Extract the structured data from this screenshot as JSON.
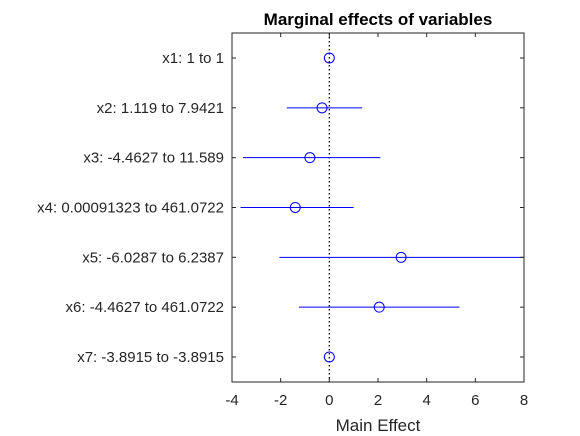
{
  "chart_data": {
    "type": "scatter",
    "title": "Marginal effects of variables",
    "xlabel": "Main Effect",
    "ylabel": "",
    "xlim": [
      -4,
      8
    ],
    "xticks": [
      "-4",
      "-2",
      "0",
      "2",
      "4",
      "6",
      "8"
    ],
    "reference_line_x": 0,
    "grid": false,
    "marker_color": "#0000ff",
    "categories": [
      "x1: 1 to 1",
      "x2: 1.119 to 7.9421",
      "x3: -4.4627 to 11.589",
      "x4: 0.00091323 to 461.0722",
      "x5: -6.0287 to 6.2387",
      "x6: -4.4627 to 461.0722",
      "x7: -3.8915 to -3.8915"
    ],
    "effect": [
      0,
      -0.3,
      -0.8,
      -1.4,
      2.95,
      2.05,
      0
    ],
    "lower": [
      0,
      -1.75,
      -3.55,
      -3.65,
      -2.05,
      -1.25,
      0
    ],
    "upper": [
      0,
      1.35,
      2.1,
      1.0,
      8.0,
      5.35,
      0
    ]
  }
}
